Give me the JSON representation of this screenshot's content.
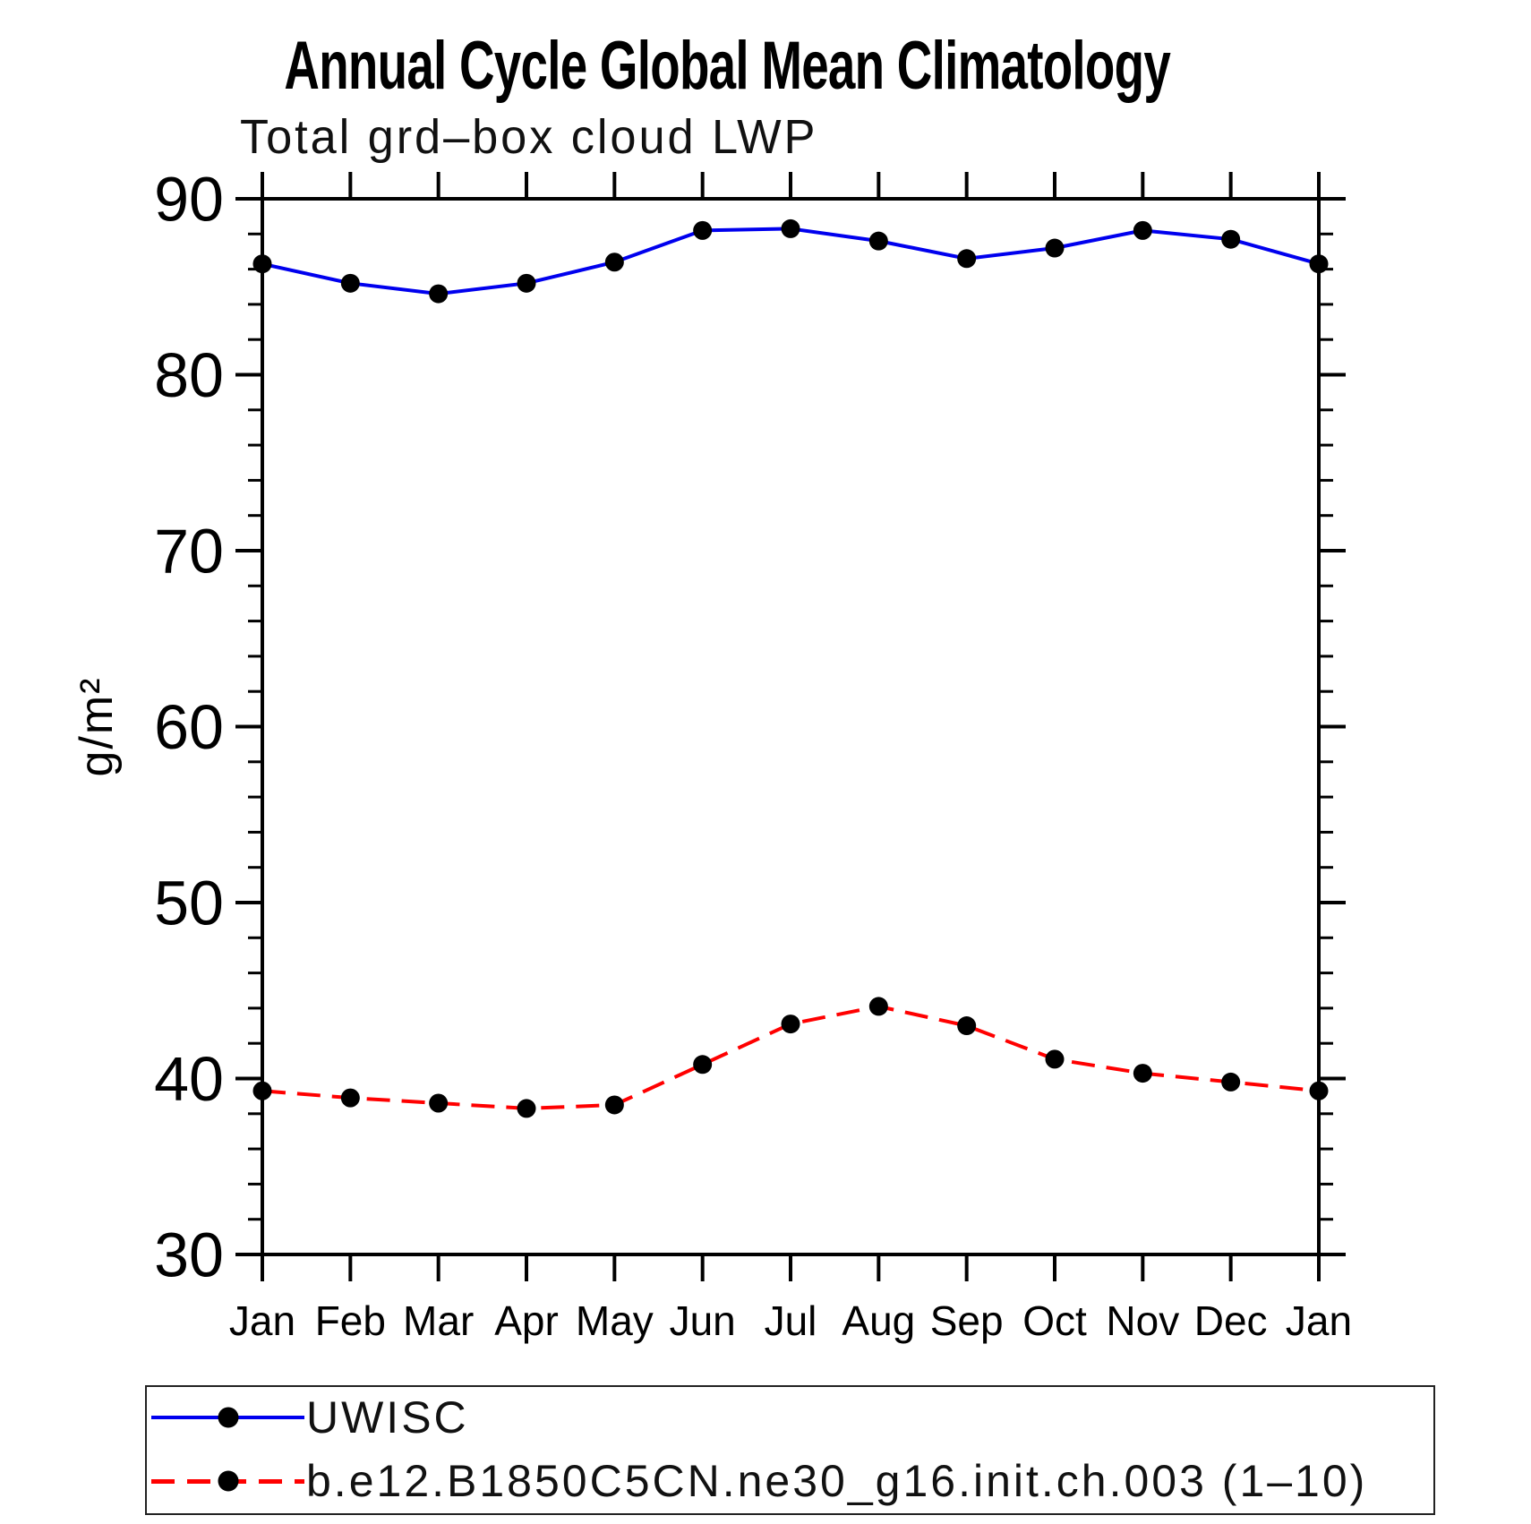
{
  "page": {
    "background": "#ffffff"
  },
  "chart_data": {
    "type": "line",
    "title": "Annual Cycle Global Mean Climatology",
    "subtitle": "Total grd–box cloud LWP",
    "ylabel": "g/m²",
    "xlabel": "",
    "categories": [
      "Jan",
      "Feb",
      "Mar",
      "Apr",
      "May",
      "Jun",
      "Jul",
      "Aug",
      "Sep",
      "Oct",
      "Nov",
      "Dec",
      "Jan"
    ],
    "ylim": [
      30,
      90
    ],
    "yticks": [
      30,
      40,
      50,
      60,
      70,
      80,
      90
    ],
    "ytick_minor_step": 2,
    "grid": "off",
    "legend_position": "bottom-left-box",
    "series": [
      {
        "name": "UWISC",
        "color": "#0000EE",
        "line_style": "solid",
        "marker": "filled-circle",
        "marker_color": "#000000",
        "values": [
          86.3,
          85.2,
          84.6,
          85.2,
          86.4,
          88.2,
          88.3,
          87.6,
          86.6,
          87.2,
          88.2,
          87.7,
          86.3
        ]
      },
      {
        "name": "b.e12.B1850C5CN.ne30_g16.init.ch.003 (1–10)",
        "color": "#FF0000",
        "line_style": "dashed",
        "marker": "filled-circle",
        "marker_color": "#000000",
        "values": [
          39.3,
          38.9,
          38.6,
          38.3,
          38.5,
          40.8,
          43.1,
          44.1,
          43.0,
          41.1,
          40.3,
          39.8,
          39.3
        ]
      }
    ]
  }
}
